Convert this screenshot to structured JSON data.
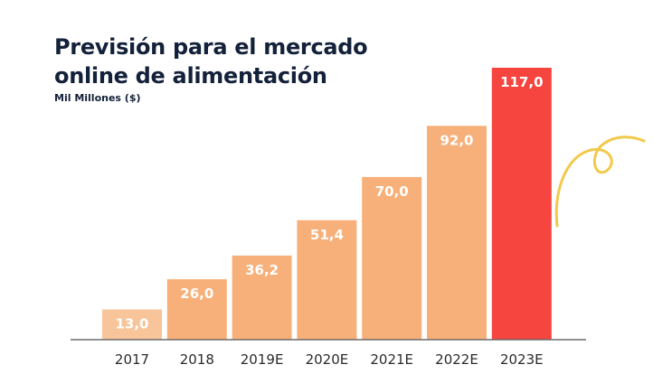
{
  "chart_data": {
    "type": "bar",
    "title_line1": "Previsión para el mercado",
    "title_line2": "online de alimentación",
    "subtitle": "Mil Millones ($)",
    "categories": [
      "2017",
      "2018",
      "2019E",
      "2020E",
      "2021E",
      "2022E",
      "2023E"
    ],
    "values": [
      13.0,
      26.0,
      36.2,
      51.4,
      70.0,
      92.0,
      117.0
    ],
    "value_labels": [
      "13,0",
      "26,0",
      "36,2",
      "51,4",
      "70,0",
      "92,0",
      "117,0"
    ],
    "xlabel": "",
    "ylabel": "Mil Millones ($)",
    "ylim": [
      0,
      117
    ],
    "grid": false,
    "legend": "none",
    "colors": [
      "#f8c49a",
      "#f8b07a",
      "#f8b07a",
      "#f8b07a",
      "#f8b07a",
      "#f8b07a",
      "#f6453f"
    ],
    "axis_color": "#6b6b6b",
    "decoration_color": "#f2c94c"
  }
}
